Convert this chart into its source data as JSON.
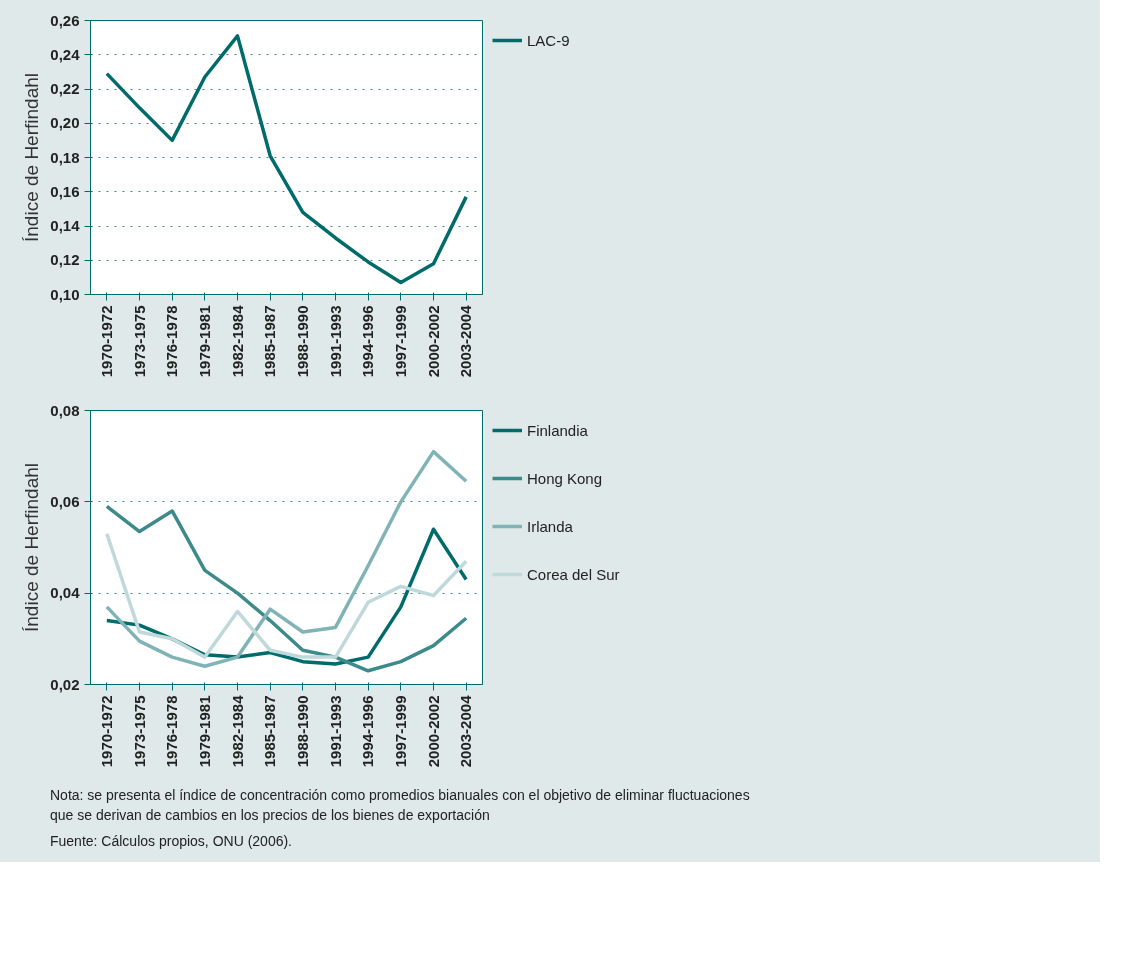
{
  "chart_data": [
    {
      "type": "line",
      "ylabel": "Índice de Herfindahl",
      "categories": [
        "1970-1972",
        "1973-1975",
        "1976-1978",
        "1979-1981",
        "1982-1984",
        "1985-1987",
        "1988-1990",
        "1991-1993",
        "1994-1996",
        "1997-1999",
        "2000-2002",
        "2003-2004"
      ],
      "series": [
        {
          "name": "LAC-9",
          "color": "#006b6b",
          "values": [
            0.229,
            0.209,
            0.19,
            0.227,
            0.251,
            0.181,
            0.148,
            0.133,
            0.119,
            0.107,
            0.118,
            0.157
          ]
        }
      ],
      "ylim": [
        0.1,
        0.26
      ],
      "yticks": [
        {
          "value": 0.1,
          "label": "0,10"
        },
        {
          "value": 0.12,
          "label": "0,12"
        },
        {
          "value": 0.14,
          "label": "0,14"
        },
        {
          "value": 0.16,
          "label": "0,16"
        },
        {
          "value": 0.18,
          "label": "0,18"
        },
        {
          "value": 0.2,
          "label": "0,20"
        },
        {
          "value": 0.22,
          "label": "0,22"
        },
        {
          "value": 0.24,
          "label": "0,24"
        },
        {
          "value": 0.26,
          "label": "0,26"
        }
      ],
      "grid": "y",
      "legend": "right",
      "marker": "none",
      "line_style": "solid"
    },
    {
      "type": "line",
      "ylabel": "Índice de Herfindahl",
      "categories": [
        "1970-1972",
        "1973-1975",
        "1976-1978",
        "1979-1981",
        "1982-1984",
        "1985-1987",
        "1988-1990",
        "1991-1993",
        "1994-1996",
        "1997-1999",
        "2000-2002",
        "2003-2004"
      ],
      "series": [
        {
          "name": "Finlandia",
          "color": "#006b6b",
          "values": [
            0.034,
            0.033,
            0.03,
            0.0265,
            0.026,
            0.027,
            0.025,
            0.0245,
            0.026,
            0.037,
            0.054,
            0.043
          ]
        },
        {
          "name": "Hong Kong",
          "color": "#3d8a8a",
          "values": [
            0.059,
            0.0535,
            0.058,
            0.045,
            0.04,
            0.034,
            0.0275,
            0.026,
            0.023,
            0.025,
            0.0285,
            0.0345
          ]
        },
        {
          "name": "Irlanda",
          "color": "#80b3b5",
          "values": [
            0.037,
            0.0295,
            0.026,
            0.024,
            0.026,
            0.0365,
            0.0315,
            0.0325,
            0.046,
            0.06,
            0.071,
            0.0645
          ]
        },
        {
          "name": "Corea del Sur",
          "color": "#bfd9da",
          "values": [
            0.053,
            0.0315,
            0.03,
            0.026,
            0.036,
            0.0275,
            0.026,
            0.026,
            0.038,
            0.0415,
            0.0395,
            0.047
          ]
        }
      ],
      "ylim": [
        0.02,
        0.08
      ],
      "yticks": [
        {
          "value": 0.02,
          "label": "0,02"
        },
        {
          "value": 0.04,
          "label": "0,04"
        },
        {
          "value": 0.06,
          "label": "0,06"
        },
        {
          "value": 0.08,
          "label": "0,08"
        }
      ],
      "grid": "y",
      "legend": "right",
      "marker": "none",
      "line_style": "solid",
      "annotations": [
        "Nota: se presenta el índice de concentración como promedios bianuales con el objetivo de eliminar fluctuaciones que se derivan de cambios en los precios de los bienes de exportación",
        "Fuente: Cálculos propios, ONU (2006)."
      ]
    }
  ]
}
